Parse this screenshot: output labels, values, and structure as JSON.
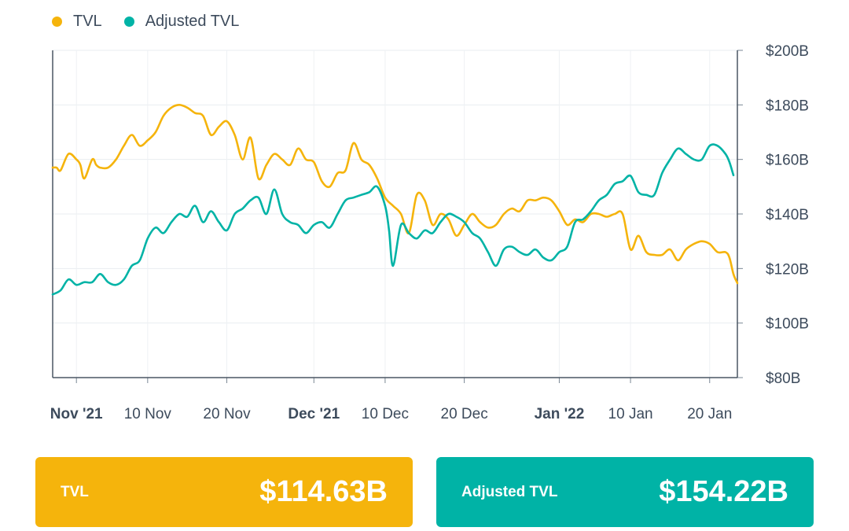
{
  "legend": [
    {
      "label": "TVL",
      "color": "#f5b40c"
    },
    {
      "label": "Adjusted TVL",
      "color": "#00b3a6"
    }
  ],
  "chart_data": {
    "type": "line",
    "x_ticks": [
      {
        "label": "Nov '21",
        "bold": true,
        "day": 0
      },
      {
        "label": "10 Nov",
        "bold": false,
        "day": 9
      },
      {
        "label": "20 Nov",
        "bold": false,
        "day": 19
      },
      {
        "label": "Dec '21",
        "bold": true,
        "day": 30
      },
      {
        "label": "10 Dec",
        "bold": false,
        "day": 39
      },
      {
        "label": "20 Dec",
        "bold": false,
        "day": 49
      },
      {
        "label": "Jan '22",
        "bold": true,
        "day": 61
      },
      {
        "label": "10 Jan",
        "bold": false,
        "day": 70
      },
      {
        "label": "20 Jan",
        "bold": false,
        "day": 80
      }
    ],
    "y_ticks": [
      "$80B",
      "$100B",
      "$120B",
      "$140B",
      "$160B",
      "$180B",
      "$200B"
    ],
    "ylim": [
      80,
      200
    ],
    "xlim": [
      -3,
      83.5
    ],
    "grid": true,
    "legend_position": "top-left",
    "series": [
      {
        "name": "TVL",
        "color": "#f5b40c",
        "points": [
          [
            -3,
            157
          ],
          [
            -2.5,
            157
          ],
          [
            -2,
            156
          ],
          [
            -1,
            162
          ],
          [
            0,
            160
          ],
          [
            0.5,
            158
          ],
          [
            1,
            153
          ],
          [
            2,
            160
          ],
          [
            2.5,
            158
          ],
          [
            3,
            157
          ],
          [
            4,
            157
          ],
          [
            5,
            160
          ],
          [
            6,
            165
          ],
          [
            7,
            169
          ],
          [
            8,
            165
          ],
          [
            9,
            167
          ],
          [
            10,
            170
          ],
          [
            11,
            176
          ],
          [
            12,
            179
          ],
          [
            13,
            180
          ],
          [
            14,
            179
          ],
          [
            15,
            177
          ],
          [
            16,
            176
          ],
          [
            17,
            169
          ],
          [
            18,
            172
          ],
          [
            19,
            174
          ],
          [
            20,
            169
          ],
          [
            21,
            160
          ],
          [
            22,
            168
          ],
          [
            23,
            153
          ],
          [
            24,
            158
          ],
          [
            25,
            162
          ],
          [
            26,
            160
          ],
          [
            27,
            158
          ],
          [
            28,
            164
          ],
          [
            29,
            160
          ],
          [
            30,
            159
          ],
          [
            31,
            152
          ],
          [
            32,
            150
          ],
          [
            33,
            155
          ],
          [
            34,
            156
          ],
          [
            35,
            166
          ],
          [
            36,
            160
          ],
          [
            37,
            158
          ],
          [
            38,
            153
          ],
          [
            39,
            146
          ],
          [
            40,
            143
          ],
          [
            41,
            140
          ],
          [
            42,
            133
          ],
          [
            43,
            147
          ],
          [
            44,
            145
          ],
          [
            45,
            136
          ],
          [
            46,
            140
          ],
          [
            47,
            138
          ],
          [
            48,
            132
          ],
          [
            49,
            136
          ],
          [
            50,
            140
          ],
          [
            51,
            137
          ],
          [
            52,
            135
          ],
          [
            53,
            136
          ],
          [
            54,
            140
          ],
          [
            55,
            142
          ],
          [
            56,
            141
          ],
          [
            57,
            145
          ],
          [
            58,
            145
          ],
          [
            59,
            146
          ],
          [
            60,
            145
          ],
          [
            61,
            141
          ],
          [
            62,
            136
          ],
          [
            63,
            138
          ],
          [
            64,
            137
          ],
          [
            65,
            140
          ],
          [
            66,
            140
          ],
          [
            67,
            139
          ],
          [
            68,
            140
          ],
          [
            69,
            140
          ],
          [
            70,
            127
          ],
          [
            71,
            132
          ],
          [
            72,
            126
          ],
          [
            73,
            125
          ],
          [
            74,
            125
          ],
          [
            75,
            127
          ],
          [
            76,
            123
          ],
          [
            77,
            127
          ],
          [
            78,
            129
          ],
          [
            79,
            130
          ],
          [
            80,
            129
          ],
          [
            81,
            126
          ],
          [
            82,
            126
          ],
          [
            82.5,
            124
          ],
          [
            83,
            118
          ],
          [
            83.5,
            114.63
          ]
        ]
      },
      {
        "name": "Adjusted TVL",
        "color": "#00b3a6",
        "points": [
          [
            -3,
            110.5
          ],
          [
            -2,
            112
          ],
          [
            -1,
            116
          ],
          [
            0,
            114
          ],
          [
            1,
            115
          ],
          [
            2,
            115
          ],
          [
            3,
            118
          ],
          [
            4,
            115
          ],
          [
            5,
            114
          ],
          [
            6,
            116
          ],
          [
            7,
            121
          ],
          [
            8,
            123
          ],
          [
            9,
            131
          ],
          [
            10,
            135
          ],
          [
            11,
            133
          ],
          [
            12,
            137
          ],
          [
            13,
            140
          ],
          [
            14,
            139
          ],
          [
            15,
            143
          ],
          [
            16,
            137
          ],
          [
            17,
            141
          ],
          [
            18,
            137
          ],
          [
            19,
            134
          ],
          [
            20,
            140
          ],
          [
            21,
            142
          ],
          [
            22,
            145
          ],
          [
            23,
            146
          ],
          [
            24,
            140
          ],
          [
            25,
            149
          ],
          [
            26,
            140
          ],
          [
            27,
            137
          ],
          [
            28,
            136
          ],
          [
            29,
            133
          ],
          [
            30,
            136
          ],
          [
            31,
            137
          ],
          [
            32,
            135
          ],
          [
            33,
            140
          ],
          [
            34,
            145
          ],
          [
            35,
            146
          ],
          [
            36,
            147
          ],
          [
            37,
            148
          ],
          [
            38,
            150
          ],
          [
            39,
            143
          ],
          [
            39.5,
            134
          ],
          [
            40,
            121
          ],
          [
            41,
            136
          ],
          [
            42,
            133
          ],
          [
            43,
            131
          ],
          [
            44,
            134
          ],
          [
            45,
            133
          ],
          [
            46,
            137
          ],
          [
            47,
            140
          ],
          [
            48,
            139
          ],
          [
            49,
            137
          ],
          [
            50,
            133
          ],
          [
            51,
            131
          ],
          [
            52,
            126
          ],
          [
            53,
            121
          ],
          [
            54,
            127
          ],
          [
            55,
            128
          ],
          [
            56,
            126
          ],
          [
            57,
            125
          ],
          [
            58,
            127
          ],
          [
            59,
            124
          ],
          [
            60,
            123
          ],
          [
            61,
            126
          ],
          [
            62,
            128
          ],
          [
            63,
            137
          ],
          [
            64,
            138
          ],
          [
            65,
            141
          ],
          [
            66,
            145
          ],
          [
            67,
            147
          ],
          [
            68,
            151
          ],
          [
            69,
            152
          ],
          [
            70,
            154
          ],
          [
            71,
            148
          ],
          [
            72,
            147
          ],
          [
            73,
            147
          ],
          [
            74,
            155
          ],
          [
            75,
            160
          ],
          [
            76,
            164
          ],
          [
            77,
            162
          ],
          [
            78,
            160
          ],
          [
            79,
            160
          ],
          [
            80,
            165
          ],
          [
            81,
            165
          ],
          [
            82,
            162
          ],
          [
            82.5,
            159
          ],
          [
            83,
            154.22
          ]
        ]
      }
    ]
  },
  "cards": {
    "tvl": {
      "label": "TVL",
      "value": "$114.63B",
      "color": "#f5b40c"
    },
    "adjusted": {
      "label": "Adjusted TVL",
      "value": "$154.22B",
      "color": "#00b3a6"
    }
  }
}
